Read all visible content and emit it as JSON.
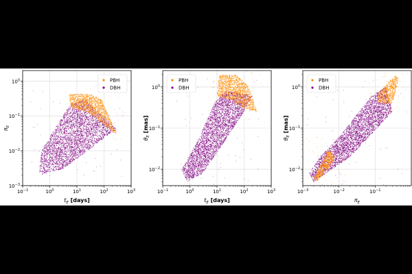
{
  "chart_data": [
    {
      "type": "scatter",
      "xlabel": "$t_E$ [days]",
      "xlabel_main": "t",
      "xlabel_sub": "E",
      "xlabel_rest": " [days]",
      "ylabel": "$\\pi_E$",
      "ylabel_main": "π",
      "ylabel_sub": "E",
      "xscale": "log",
      "yscale": "log",
      "xlim": [
        0.1,
        1000
      ],
      "ylim": [
        0.001,
        2
      ],
      "x_ticks": [
        0.1,
        1,
        10,
        100,
        1000
      ],
      "x_tick_labels": [
        [
          "10",
          "−1"
        ],
        [
          "10",
          "0"
        ],
        [
          "10",
          "1"
        ],
        [
          "10",
          "2"
        ],
        [
          "10",
          "3"
        ]
      ],
      "y_ticks": [
        0.001,
        0.01,
        0.1,
        1
      ],
      "y_tick_labels": [
        [
          "10",
          "−3"
        ],
        [
          "10",
          "−2"
        ],
        [
          "10",
          "−1"
        ],
        [
          "10",
          "0"
        ]
      ],
      "grid": true,
      "legend_position": "top-right",
      "series": [
        {
          "name": "PBH",
          "color": "#ff8c00",
          "region": [
            [
              5,
              0.42
            ],
            [
              30,
              0.42
            ],
            [
              80,
              0.3
            ],
            [
              200,
              0.06
            ],
            [
              300,
              0.03
            ],
            [
              120,
              0.05
            ],
            [
              30,
              0.12
            ],
            [
              6,
              0.18
            ]
          ],
          "density": 1400
        },
        {
          "name": "DBH",
          "color": "#800080",
          "region": [
            [
              0.4,
              0.002
            ],
            [
              3,
              0.003
            ],
            [
              25,
              0.01
            ],
            [
              150,
              0.03
            ],
            [
              300,
              0.04
            ],
            [
              120,
              0.08
            ],
            [
              20,
              0.3
            ],
            [
              6,
              0.22
            ],
            [
              2,
              0.06
            ],
            [
              0.5,
              0.01
            ]
          ],
          "density": 3500
        }
      ]
    },
    {
      "type": "scatter",
      "xlabel": "$t_E$ [days]",
      "xlabel_main": "t",
      "xlabel_sub": "E",
      "xlabel_rest": " [days]",
      "ylabel": "$\\theta_E$ [mas]",
      "ylabel_main": "θ",
      "ylabel_sub": "E",
      "ylabel_rest": " [mas]",
      "xscale": "log",
      "yscale": "log",
      "xlim": [
        0.1,
        1000
      ],
      "ylim": [
        0.004,
        2.5
      ],
      "x_ticks": [
        0.1,
        1,
        10,
        100,
        1000
      ],
      "x_tick_labels": [
        [
          "10",
          "−1"
        ],
        [
          "10",
          "0"
        ],
        [
          "10",
          "1"
        ],
        [
          "10",
          "2"
        ],
        [
          "10",
          "3"
        ]
      ],
      "y_ticks": [
        0.01,
        0.1,
        1
      ],
      "y_tick_labels": [
        [
          "10",
          "−2"
        ],
        [
          "10",
          "−1"
        ],
        [
          "10",
          "0"
        ]
      ],
      "grid": true,
      "legend_position": "top-left",
      "series": [
        {
          "name": "PBH",
          "color": "#ff8c00",
          "region": [
            [
              12,
              1.9
            ],
            [
              50,
              2.0
            ],
            [
              150,
              1.0
            ],
            [
              300,
              0.25
            ],
            [
              100,
              0.3
            ],
            [
              30,
              0.5
            ],
            [
              10,
              0.6
            ]
          ],
          "density": 1500
        },
        {
          "name": "DBH",
          "color": "#800080",
          "region": [
            [
              0.8,
              0.005
            ],
            [
              3,
              0.008
            ],
            [
              20,
              0.05
            ],
            [
              120,
              0.3
            ],
            [
              200,
              0.6
            ],
            [
              80,
              0.7
            ],
            [
              20,
              0.8
            ],
            [
              8,
              0.4
            ],
            [
              2,
              0.05
            ],
            [
              0.5,
              0.01
            ]
          ],
          "density": 3500
        }
      ]
    },
    {
      "type": "scatter",
      "xlabel": "$\\pi_E$",
      "xlabel_main": "π",
      "xlabel_sub": "E",
      "xlabel_rest": "",
      "ylabel": "$\\theta_E$ [mas]",
      "ylabel_main": "θ",
      "ylabel_sub": "E",
      "ylabel_rest": " [mas]",
      "xscale": "log",
      "yscale": "log",
      "xlim": [
        0.001,
        1
      ],
      "ylim": [
        0.004,
        2.5
      ],
      "x_ticks": [
        0.001,
        0.01,
        0.1
      ],
      "x_tick_labels": [
        [
          "10",
          "−3"
        ],
        [
          "10",
          "−2"
        ],
        [
          "10",
          "−1"
        ]
      ],
      "y_ticks": [
        0.01,
        0.1,
        1
      ],
      "y_tick_labels": [
        [
          "10",
          "−2"
        ],
        [
          "10",
          "−1"
        ],
        [
          "10",
          "0"
        ]
      ],
      "grid": true,
      "legend_position": "top-left",
      "series": [
        {
          "name": "PBH",
          "color": "#ff8c00",
          "region": [
            [
              0.0025,
              0.005
            ],
            [
              0.005,
              0.01
            ],
            [
              0.008,
              0.02
            ],
            [
              0.005,
              0.03
            ],
            [
              0.003,
              0.012
            ],
            [
              0.002,
              0.006
            ]
          ],
          "extra_region": [
            [
              0.12,
              0.7
            ],
            [
              0.35,
              1.9
            ],
            [
              0.45,
              1.6
            ],
            [
              0.3,
              0.4
            ],
            [
              0.12,
              0.4
            ]
          ],
          "density": 1300
        },
        {
          "name": "DBH",
          "color": "#800080",
          "region": [
            [
              0.002,
              0.005
            ],
            [
              0.02,
              0.02
            ],
            [
              0.3,
              0.25
            ],
            [
              0.2,
              1.0
            ],
            [
              0.08,
              0.6
            ],
            [
              0.01,
              0.06
            ],
            [
              0.003,
              0.02
            ],
            [
              0.0015,
              0.008
            ]
          ],
          "density": 3500
        }
      ]
    }
  ]
}
